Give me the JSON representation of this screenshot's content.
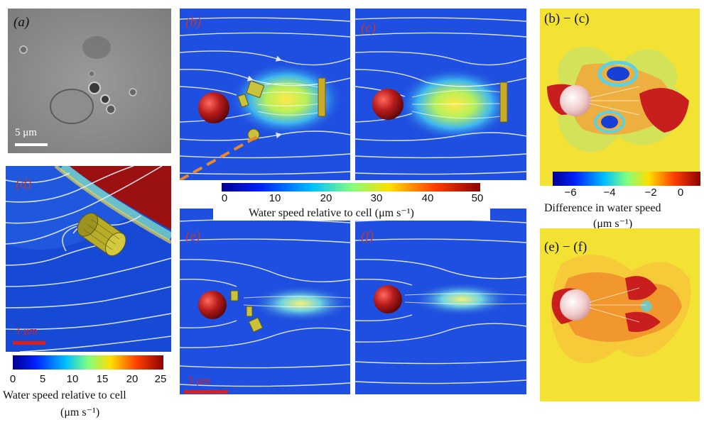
{
  "panels": {
    "a": {
      "label": "(a)",
      "scale_bar": "5 μm"
    },
    "b": {
      "label": "(b)"
    },
    "c": {
      "label": "(c)"
    },
    "d": {
      "label": "(d)",
      "scale_bar": "1 μm"
    },
    "e": {
      "label": "(e)",
      "scale_bar": "5 μm"
    },
    "f": {
      "label": "(f)"
    },
    "bc": {
      "label": "(b) − (c)"
    },
    "ef": {
      "label": "(e) − (f)"
    }
  },
  "colorbar_main": {
    "ticks": [
      "0",
      "10",
      "20",
      "30",
      "40",
      "50"
    ],
    "title": "Water speed relative to cell (μm s⁻¹)"
  },
  "colorbar_left": {
    "ticks": [
      "0",
      "5",
      "10",
      "15",
      "20",
      "25"
    ],
    "title": "Water speed relative to cell",
    "unit": "(μm s⁻¹)"
  },
  "colorbar_diff": {
    "ticks": [
      "−6",
      "−4",
      "−2",
      "0"
    ],
    "title": "Difference in water speed",
    "unit": "(μm s⁻¹)"
  },
  "colors": {
    "field_blue": "#1f4fe0",
    "cell_red": "#a4161a",
    "flagella_yellow": "#c9c23a",
    "diff_yellow": "#f3e233",
    "scale_red": "#d9201b",
    "arrow_orange": "#e8872c"
  }
}
